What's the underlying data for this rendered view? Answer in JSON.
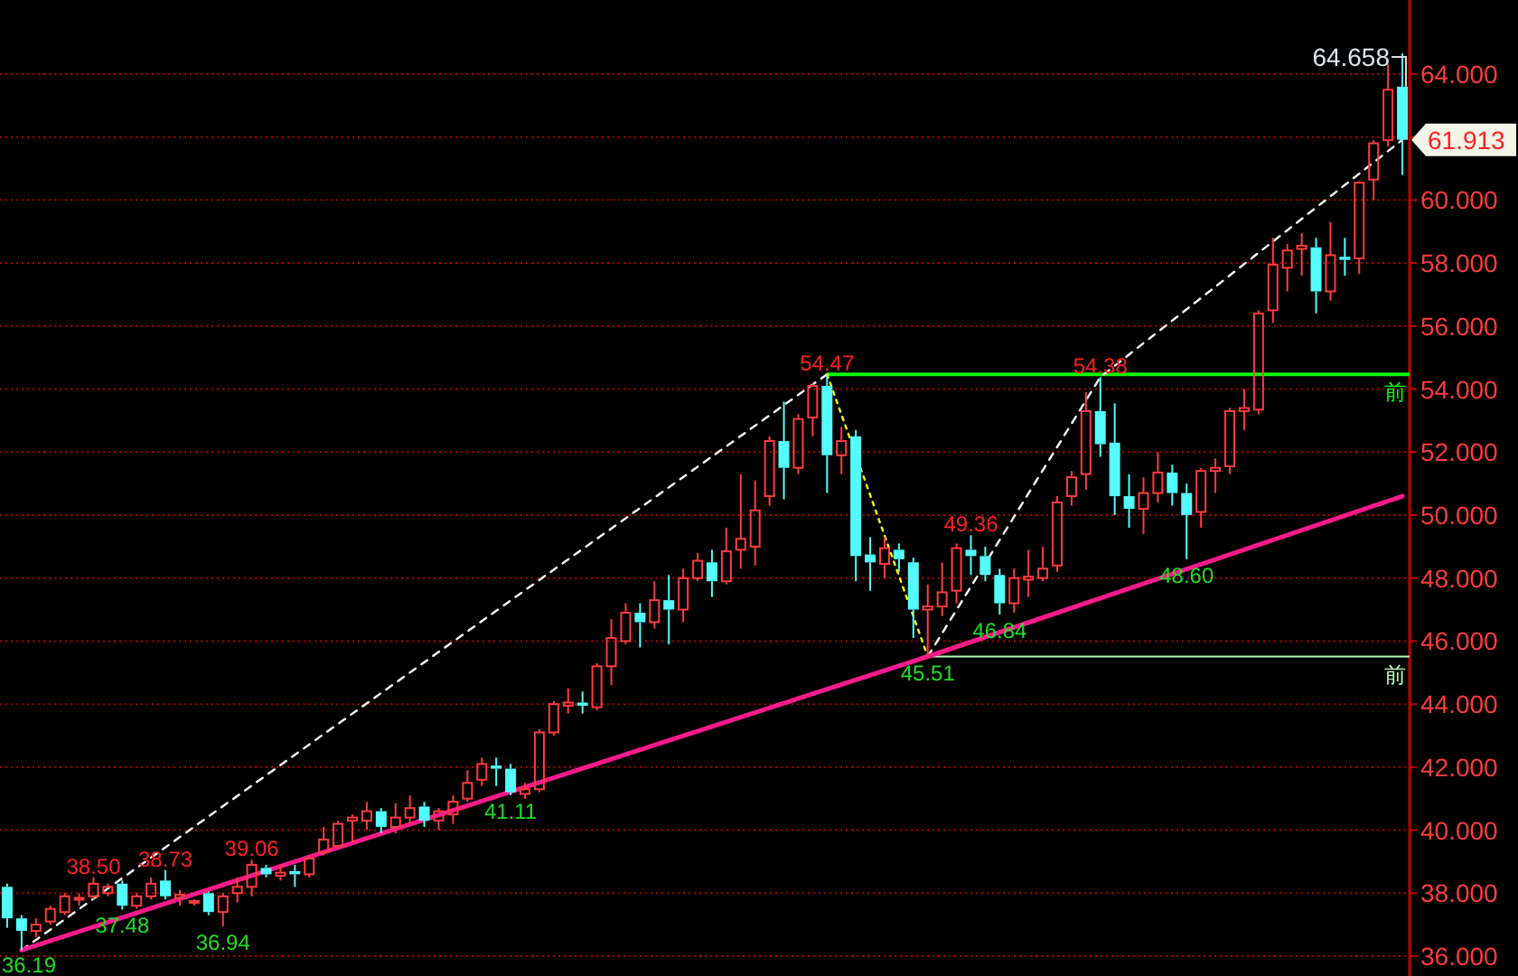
{
  "chart_data": {
    "type": "candlestick",
    "categories": [
      null,
      null,
      null,
      null,
      null,
      null,
      null,
      null,
      null,
      null,
      null,
      null,
      null,
      null,
      null,
      null,
      null,
      null,
      null,
      null,
      null,
      null,
      null,
      null,
      null,
      null,
      null,
      null,
      null,
      null,
      null,
      null,
      null,
      null,
      null,
      null,
      null,
      null,
      null,
      null,
      null,
      null,
      null,
      null,
      null,
      null,
      null,
      null,
      null,
      null,
      null,
      null,
      null,
      null,
      null,
      null,
      null,
      null,
      null,
      null,
      null,
      null,
      null,
      null,
      null,
      null,
      null,
      null,
      null,
      null,
      null,
      null,
      null,
      null,
      null,
      null,
      null,
      null,
      null,
      null,
      null,
      null,
      null,
      null,
      null,
      null,
      null,
      null,
      null,
      null,
      null,
      null,
      null,
      null,
      null,
      null,
      null,
      null
    ],
    "ohlc": [
      [
        38.2,
        38.3,
        36.9,
        37.2
      ],
      [
        37.2,
        37.3,
        36.19,
        36.8
      ],
      [
        36.8,
        37.2,
        36.6,
        37.0
      ],
      [
        37.1,
        37.6,
        37.0,
        37.5
      ],
      [
        37.4,
        38.0,
        37.3,
        37.9
      ],
      [
        37.8,
        38.0,
        37.6,
        37.85
      ],
      [
        37.9,
        38.5,
        37.8,
        38.3
      ],
      [
        38.0,
        38.3,
        37.9,
        38.2
      ],
      [
        38.3,
        38.4,
        37.48,
        37.6
      ],
      [
        37.6,
        38.0,
        37.5,
        37.9
      ],
      [
        37.9,
        38.5,
        37.8,
        38.3
      ],
      [
        38.4,
        38.73,
        37.8,
        37.9
      ],
      [
        37.85,
        38.1,
        37.6,
        37.95
      ],
      [
        37.7,
        37.8,
        37.6,
        37.75
      ],
      [
        38.0,
        38.05,
        37.3,
        37.4
      ],
      [
        37.4,
        38.0,
        36.94,
        37.9
      ],
      [
        38.0,
        38.5,
        37.7,
        38.2
      ],
      [
        38.2,
        39.06,
        37.9,
        38.9
      ],
      [
        38.8,
        38.9,
        38.5,
        38.6
      ],
      [
        38.55,
        38.9,
        38.4,
        38.65
      ],
      [
        38.7,
        38.9,
        38.2,
        38.6
      ],
      [
        38.6,
        39.2,
        38.5,
        39.1
      ],
      [
        39.3,
        40.1,
        39.2,
        39.7
      ],
      [
        39.5,
        40.3,
        39.4,
        40.2
      ],
      [
        40.3,
        40.5,
        39.6,
        40.4
      ],
      [
        40.3,
        40.9,
        40.0,
        40.6
      ],
      [
        40.6,
        40.7,
        39.9,
        40.1
      ],
      [
        40.1,
        40.85,
        39.9,
        40.4
      ],
      [
        40.4,
        41.1,
        40.2,
        40.7
      ],
      [
        40.75,
        40.9,
        40.1,
        40.3
      ],
      [
        40.3,
        40.7,
        40.0,
        40.6
      ],
      [
        40.5,
        41.1,
        40.2,
        40.9
      ],
      [
        41.0,
        41.9,
        40.9,
        41.5
      ],
      [
        41.6,
        42.3,
        41.4,
        42.1
      ],
      [
        42.05,
        42.3,
        41.4,
        41.95
      ],
      [
        41.95,
        42.1,
        41.11,
        41.2
      ],
      [
        41.15,
        41.5,
        41.0,
        41.3
      ],
      [
        41.3,
        43.2,
        41.2,
        43.1
      ],
      [
        43.1,
        44.1,
        43.0,
        44.0
      ],
      [
        43.95,
        44.5,
        43.7,
        44.05
      ],
      [
        44.05,
        44.4,
        43.7,
        43.95
      ],
      [
        43.9,
        45.3,
        43.8,
        45.2
      ],
      [
        45.2,
        46.7,
        44.6,
        46.1
      ],
      [
        46.0,
        47.2,
        45.9,
        46.9
      ],
      [
        46.9,
        47.2,
        45.8,
        46.6
      ],
      [
        46.6,
        47.9,
        46.4,
        47.3
      ],
      [
        47.3,
        48.1,
        45.9,
        47.0
      ],
      [
        47.0,
        48.3,
        46.6,
        48.0
      ],
      [
        48.0,
        48.8,
        47.9,
        48.55
      ],
      [
        48.5,
        48.9,
        47.4,
        47.9
      ],
      [
        47.9,
        49.6,
        47.8,
        48.85
      ],
      [
        48.9,
        51.3,
        48.3,
        49.25
      ],
      [
        49.0,
        51.1,
        48.4,
        50.15
      ],
      [
        50.6,
        52.5,
        50.3,
        52.35
      ],
      [
        52.35,
        53.6,
        50.5,
        51.5
      ],
      [
        51.5,
        53.2,
        51.3,
        53.05
      ],
      [
        53.1,
        54.2,
        52.5,
        54.1
      ],
      [
        54.1,
        54.47,
        50.7,
        51.9
      ],
      [
        51.9,
        52.8,
        51.3,
        52.35
      ],
      [
        52.5,
        52.7,
        47.9,
        48.7
      ],
      [
        48.75,
        49.3,
        47.6,
        48.5
      ],
      [
        48.45,
        49.3,
        48.0,
        48.95
      ],
      [
        48.9,
        49.1,
        48.2,
        48.6
      ],
      [
        48.5,
        48.65,
        46.1,
        47.0
      ],
      [
        47.0,
        47.8,
        45.51,
        47.1
      ],
      [
        47.1,
        48.5,
        46.8,
        47.55
      ],
      [
        47.6,
        49.1,
        47.2,
        48.95
      ],
      [
        48.9,
        49.36,
        48.1,
        48.7
      ],
      [
        48.7,
        49.0,
        47.9,
        48.1
      ],
      [
        48.1,
        48.3,
        46.84,
        47.2
      ],
      [
        47.2,
        48.3,
        46.9,
        48.0
      ],
      [
        47.95,
        48.9,
        47.4,
        48.05
      ],
      [
        48.0,
        49.0,
        47.9,
        48.3
      ],
      [
        48.4,
        50.6,
        48.2,
        50.4
      ],
      [
        50.6,
        51.4,
        50.3,
        51.2
      ],
      [
        51.3,
        53.9,
        50.8,
        53.3
      ],
      [
        53.3,
        54.38,
        51.85,
        52.25
      ],
      [
        52.3,
        53.55,
        50.0,
        50.6
      ],
      [
        50.6,
        51.3,
        49.6,
        50.2
      ],
      [
        50.2,
        51.2,
        49.4,
        50.7
      ],
      [
        50.7,
        52.0,
        50.4,
        51.35
      ],
      [
        51.35,
        51.6,
        50.3,
        50.7
      ],
      [
        50.7,
        51.0,
        48.6,
        50.0
      ],
      [
        50.1,
        51.5,
        49.6,
        51.4
      ],
      [
        51.4,
        51.8,
        50.7,
        51.5
      ],
      [
        51.55,
        53.4,
        51.3,
        53.3
      ],
      [
        53.3,
        54.0,
        52.7,
        53.4
      ],
      [
        53.35,
        56.5,
        53.2,
        56.4
      ],
      [
        56.5,
        58.8,
        56.1,
        57.95
      ],
      [
        57.85,
        58.6,
        57.1,
        58.4
      ],
      [
        58.45,
        58.95,
        57.6,
        58.55
      ],
      [
        58.5,
        58.8,
        56.4,
        57.1
      ],
      [
        57.1,
        59.3,
        56.8,
        58.25
      ],
      [
        58.2,
        58.8,
        57.6,
        58.1
      ],
      [
        58.15,
        60.6,
        57.65,
        60.55
      ],
      [
        60.65,
        61.9,
        60.0,
        61.8
      ],
      [
        61.9,
        64.3,
        61.7,
        63.5
      ],
      [
        63.6,
        64.658,
        60.8,
        61.913
      ]
    ],
    "series": [
      {
        "type": "line",
        "color": "#ffffff",
        "line_style": "dashed",
        "values": [
          null,
          36.19,
          null,
          null,
          null,
          null,
          null,
          null,
          null,
          null,
          null,
          null,
          null,
          null,
          null,
          null,
          null,
          null,
          null,
          null,
          null,
          null,
          null,
          null,
          null,
          null,
          null,
          null,
          null,
          null,
          null,
          null,
          null,
          null,
          null,
          null,
          null,
          null,
          null,
          null,
          null,
          null,
          null,
          null,
          null,
          null,
          null,
          null,
          null,
          null,
          null,
          null,
          null,
          null,
          null,
          null,
          null,
          54.47,
          null,
          null,
          null,
          null,
          null,
          null,
          null,
          null,
          null,
          null,
          null,
          null,
          null,
          null,
          null,
          null,
          null,
          null,
          null,
          null,
          null,
          null,
          null,
          null,
          null,
          null,
          null,
          null,
          null,
          null,
          null,
          null,
          null,
          null,
          null,
          null,
          null,
          null,
          null,
          null
        ]
      },
      {
        "type": "line",
        "color": "#ffff00",
        "line_style": "dotted",
        "values": [
          null,
          null,
          null,
          null,
          null,
          null,
          null,
          null,
          null,
          null,
          null,
          null,
          null,
          null,
          null,
          null,
          null,
          null,
          null,
          null,
          null,
          null,
          null,
          null,
          null,
          null,
          null,
          null,
          null,
          null,
          null,
          null,
          null,
          null,
          null,
          null,
          null,
          null,
          null,
          null,
          null,
          null,
          null,
          null,
          null,
          null,
          null,
          null,
          null,
          null,
          null,
          null,
          null,
          null,
          null,
          null,
          null,
          54.47,
          null,
          null,
          null,
          null,
          null,
          null,
          45.51,
          null,
          null,
          null,
          null,
          null,
          null,
          null,
          null,
          null,
          null,
          null,
          null,
          null,
          null,
          null,
          null,
          null,
          null,
          null,
          null,
          null,
          null,
          null,
          null,
          null,
          null,
          null,
          null,
          null,
          null,
          null,
          null,
          null
        ]
      },
      {
        "type": "line",
        "color": "#ffffff",
        "line_style": "dashed",
        "values": [
          null,
          null,
          null,
          null,
          null,
          null,
          null,
          null,
          null,
          null,
          null,
          null,
          null,
          null,
          null,
          null,
          null,
          null,
          null,
          null,
          null,
          null,
          null,
          null,
          null,
          null,
          null,
          null,
          null,
          null,
          null,
          null,
          null,
          null,
          null,
          null,
          null,
          null,
          null,
          null,
          null,
          null,
          null,
          null,
          null,
          null,
          null,
          null,
          null,
          null,
          null,
          null,
          null,
          null,
          null,
          null,
          null,
          null,
          null,
          null,
          null,
          null,
          null,
          null,
          45.51,
          null,
          null,
          null,
          null,
          null,
          null,
          null,
          null,
          null,
          null,
          null,
          54.38,
          null,
          null,
          null,
          null,
          null,
          null,
          null,
          null,
          null,
          null,
          null,
          null,
          null,
          null,
          null,
          null,
          null,
          null,
          null,
          null,
          61.913
        ]
      },
      {
        "type": "line",
        "color": "#ff1a8c",
        "line_style": "solid",
        "values": [
          null,
          36.19,
          null,
          null,
          null,
          null,
          null,
          null,
          null,
          null,
          null,
          null,
          null,
          null,
          null,
          null,
          null,
          null,
          null,
          null,
          null,
          null,
          null,
          null,
          null,
          null,
          null,
          null,
          null,
          null,
          null,
          null,
          null,
          null,
          null,
          null,
          null,
          null,
          null,
          null,
          null,
          null,
          null,
          null,
          null,
          null,
          null,
          null,
          null,
          null,
          null,
          null,
          null,
          null,
          null,
          null,
          null,
          null,
          null,
          null,
          null,
          null,
          null,
          null,
          45.51,
          null,
          null,
          null,
          null,
          null,
          null,
          null,
          null,
          null,
          null,
          null,
          null,
          null,
          null,
          null,
          null,
          null,
          null,
          null,
          null,
          null,
          null,
          null,
          null,
          null,
          null,
          null,
          null,
          null,
          null,
          null,
          null,
          50.6
        ]
      }
    ],
    "ylim": [
      35.37,
      66.35
    ],
    "yticks": [
      {
        "value": 36,
        "label": "36.000"
      },
      {
        "value": 38,
        "label": "38.000"
      },
      {
        "value": 40,
        "label": "40.000"
      },
      {
        "value": 42,
        "label": "42.000"
      },
      {
        "value": 44,
        "label": "44.000"
      },
      {
        "value": 46,
        "label": "46.000"
      },
      {
        "value": 48,
        "label": "48.000"
      },
      {
        "value": 50,
        "label": "50.000"
      },
      {
        "value": 52,
        "label": "52.000"
      },
      {
        "value": 54,
        "label": "54.000"
      },
      {
        "value": 56,
        "label": "56.000"
      },
      {
        "value": 58,
        "label": "58.000"
      },
      {
        "value": 60,
        "label": "60.000"
      },
      {
        "value": 62,
        "label": null
      },
      {
        "value": 64,
        "label": "64.000"
      }
    ],
    "grid": "y",
    "tick_labels": "y",
    "ref_lines": [
      {
        "axis": "y",
        "value": 54.47,
        "label": "前",
        "color": "#00ff00"
      },
      {
        "axis": "y",
        "value": 45.51,
        "label": "前",
        "color": "#b8ffb8"
      }
    ],
    "annotations": [
      {
        "text": "36.19",
        "y": 36.19
      },
      {
        "text": "38.50",
        "y": 38.5
      },
      {
        "text": "37.48",
        "y": 37.48
      },
      {
        "text": "38.73",
        "y": 38.73
      },
      {
        "text": "36.94",
        "y": 36.94
      },
      {
        "text": "39.06",
        "y": 39.06
      },
      {
        "text": "41.11",
        "y": 41.11
      },
      {
        "text": "54.47",
        "y": 54.47
      },
      {
        "text": "45.51",
        "y": 45.51
      },
      {
        "text": "49.36",
        "y": 49.36
      },
      {
        "text": "46.84",
        "y": 46.84
      },
      {
        "text": "54.38",
        "y": 54.38
      },
      {
        "text": "48.60",
        "y": 48.6
      },
      "64.658",
      "61.913"
    ]
  }
}
